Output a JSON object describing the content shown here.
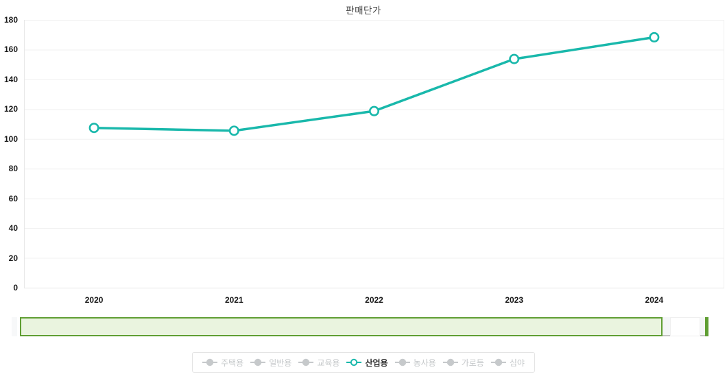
{
  "title": "판매단가",
  "colors": {
    "series": "#19b8ab",
    "marker_fill": "#ffffff",
    "grid": "#f0f0f0",
    "axis": "#e7e7e7",
    "tick_label": "#191919",
    "nav_fill": "#eaf4df",
    "nav_border": "#5f9e33",
    "nav_track": "#f4f6f7",
    "legend_inactive": "#c6c9cb",
    "legend_active_text": "#2e2e2e"
  },
  "navigator": {
    "selected_range_pct": 93
  },
  "chart_data": {
    "type": "line",
    "title": "판매단가",
    "categories": [
      "2020",
      "2021",
      "2022",
      "2023",
      "2024"
    ],
    "series": [
      {
        "name": "주택용",
        "active": false,
        "values": null
      },
      {
        "name": "일반용",
        "active": false,
        "values": null
      },
      {
        "name": "교육용",
        "active": false,
        "values": null
      },
      {
        "name": "산업용",
        "active": true,
        "values": [
          107.4,
          105.5,
          118.7,
          153.7,
          168.3
        ]
      },
      {
        "name": "농사용",
        "active": false,
        "values": null
      },
      {
        "name": "가로등",
        "active": false,
        "values": null
      },
      {
        "name": "심야",
        "active": false,
        "values": null
      }
    ],
    "xlabel": "",
    "ylabel": "",
    "ylim": [
      0,
      180
    ],
    "ytick_step": 20,
    "grid": "horizontal",
    "legend_position": "bottom"
  }
}
